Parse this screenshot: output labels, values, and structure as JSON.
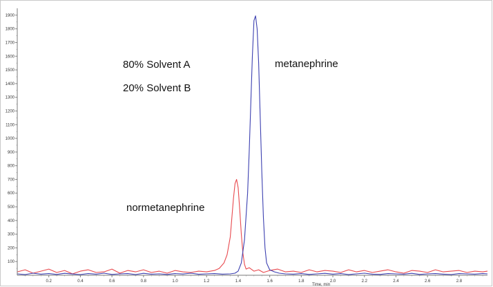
{
  "chart_data": {
    "type": "line",
    "title": "",
    "xlabel": "Time, min",
    "ylabel": "",
    "xlim": [
      0.0,
      2.98
    ],
    "ylim": [
      0,
      1950
    ],
    "x_ticks": [
      0.2,
      0.4,
      0.6,
      0.8,
      1.0,
      1.2,
      1.4,
      1.6,
      1.8,
      2.0,
      2.2,
      2.4,
      2.6,
      2.8
    ],
    "x_tick_labels": [
      "0.2",
      "0.4",
      "0.6",
      "0.8",
      "1.0",
      "1.2",
      "1.4",
      "1.6",
      "1.8",
      "2.0",
      "2.2",
      "2.4",
      "2.6",
      "2.8"
    ],
    "y_ticks": [
      100,
      200,
      300,
      400,
      500,
      600,
      700,
      800,
      900,
      1000,
      1100,
      1200,
      1300,
      1400,
      1500,
      1600,
      1700,
      1800,
      1900
    ],
    "y_tick_labels": [
      "100",
      "200",
      "300",
      "400",
      "500",
      "600",
      "700",
      "800",
      "900",
      "1000",
      "1100",
      "1200",
      "1300",
      "1400",
      "1500",
      "1600",
      "1700",
      "1800",
      "1900"
    ],
    "grid": false,
    "series": [
      {
        "color": "#e8484d",
        "x": [
          0.0,
          0.05,
          0.1,
          0.15,
          0.2,
          0.25,
          0.3,
          0.35,
          0.4,
          0.45,
          0.5,
          0.55,
          0.6,
          0.65,
          0.7,
          0.75,
          0.8,
          0.85,
          0.9,
          0.95,
          1.0,
          1.05,
          1.1,
          1.15,
          1.2,
          1.25,
          1.28,
          1.31,
          1.33,
          1.35,
          1.36,
          1.37,
          1.38,
          1.39,
          1.4,
          1.41,
          1.42,
          1.43,
          1.44,
          1.45,
          1.47,
          1.5,
          1.53,
          1.56,
          1.6,
          1.65,
          1.7,
          1.75,
          1.8,
          1.85,
          1.9,
          1.95,
          2.0,
          2.05,
          2.1,
          2.15,
          2.2,
          2.25,
          2.3,
          2.35,
          2.4,
          2.45,
          2.5,
          2.55,
          2.6,
          2.65,
          2.7,
          2.75,
          2.8,
          2.85,
          2.9,
          2.95,
          2.98
        ],
        "values": [
          25,
          40,
          15,
          30,
          45,
          20,
          35,
          10,
          30,
          40,
          20,
          25,
          45,
          15,
          35,
          25,
          40,
          20,
          30,
          15,
          35,
          25,
          20,
          30,
          25,
          35,
          50,
          90,
          150,
          280,
          420,
          560,
          670,
          700,
          640,
          480,
          300,
          160,
          80,
          45,
          55,
          30,
          40,
          20,
          35,
          45,
          25,
          30,
          20,
          40,
          25,
          35,
          30,
          20,
          40,
          25,
          35,
          20,
          30,
          40,
          25,
          15,
          35,
          30,
          20,
          40,
          25,
          30,
          35,
          20,
          30,
          25,
          30
        ]
      },
      {
        "color": "#3b3fb0",
        "x": [
          0.0,
          0.05,
          0.1,
          0.15,
          0.2,
          0.25,
          0.3,
          0.35,
          0.4,
          0.45,
          0.5,
          0.55,
          0.6,
          0.65,
          0.7,
          0.75,
          0.8,
          0.85,
          0.9,
          0.95,
          1.0,
          1.05,
          1.1,
          1.15,
          1.2,
          1.25,
          1.3,
          1.35,
          1.38,
          1.4,
          1.42,
          1.44,
          1.46,
          1.47,
          1.48,
          1.49,
          1.5,
          1.51,
          1.52,
          1.53,
          1.54,
          1.55,
          1.56,
          1.57,
          1.58,
          1.6,
          1.63,
          1.66,
          1.7,
          1.75,
          1.8,
          1.85,
          1.9,
          1.95,
          2.0,
          2.05,
          2.1,
          2.15,
          2.2,
          2.25,
          2.3,
          2.35,
          2.4,
          2.45,
          2.5,
          2.55,
          2.6,
          2.65,
          2.7,
          2.75,
          2.8,
          2.85,
          2.9,
          2.95,
          2.98
        ],
        "values": [
          10,
          5,
          15,
          8,
          12,
          6,
          14,
          9,
          5,
          12,
          8,
          15,
          6,
          10,
          12,
          5,
          14,
          8,
          10,
          6,
          12,
          9,
          15,
          7,
          10,
          12,
          8,
          10,
          15,
          30,
          90,
          260,
          600,
          900,
          1250,
          1600,
          1860,
          1895,
          1800,
          1550,
          1150,
          750,
          420,
          200,
          90,
          40,
          25,
          15,
          10,
          8,
          12,
          6,
          10,
          14,
          8,
          12,
          5,
          10,
          15,
          8,
          6,
          12,
          10,
          8,
          14,
          6,
          10,
          12,
          8,
          5,
          12,
          10,
          8,
          12,
          10
        ]
      }
    ],
    "annotations": [
      {
        "text": "80% Solvent A"
      },
      {
        "text": "20% Solvent B"
      },
      {
        "text": "metanephrine"
      },
      {
        "text": "normetanephrine"
      }
    ]
  }
}
